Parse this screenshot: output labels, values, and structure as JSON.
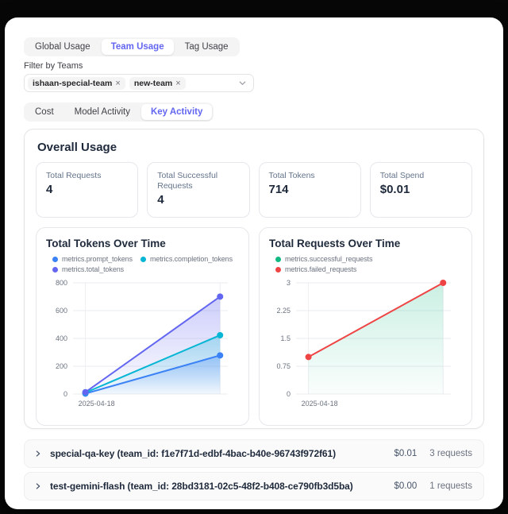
{
  "page": {
    "background": "#070707",
    "window_background": "#ffffff",
    "accent": "#6366f1"
  },
  "primary_tabs": {
    "items": [
      {
        "label": "Global Usage",
        "active": false
      },
      {
        "label": "Team Usage",
        "active": true
      },
      {
        "label": "Tag Usage",
        "active": false
      }
    ]
  },
  "team_filter": {
    "label": "Filter by Teams",
    "selected": [
      {
        "label": "ishaan-special-team"
      },
      {
        "label": "new-team"
      }
    ],
    "remove_icon": "×"
  },
  "secondary_tabs": {
    "items": [
      {
        "label": "Cost",
        "active": false
      },
      {
        "label": "Model Activity",
        "active": false
      },
      {
        "label": "Key Activity",
        "active": true
      }
    ]
  },
  "usage_panel": {
    "title": "Overall Usage",
    "stats": [
      {
        "label": "Total Requests",
        "value": "4"
      },
      {
        "label": "Total Successful Requests",
        "value": "4"
      },
      {
        "label": "Total Tokens",
        "value": "714"
      },
      {
        "label": "Total Spend",
        "value": "$0.01"
      }
    ]
  },
  "chart_data": [
    {
      "type": "area",
      "title": "Total Tokens Over Time",
      "x": [
        "2025-04-18",
        ""
      ],
      "ylim": [
        0,
        800
      ],
      "y_ticks": [
        0,
        200,
        400,
        600,
        800
      ],
      "grid": true,
      "legend_position": "top",
      "series": [
        {
          "name": "metrics.prompt_tokens",
          "color": "#3b82f6",
          "values": [
            3,
            278
          ],
          "line": true,
          "area": true,
          "dots": true,
          "fill_opacity": 0.32
        },
        {
          "name": "metrics.completion_tokens",
          "color": "#06b6d4",
          "values": [
            10,
            423
          ],
          "line": true,
          "area": true,
          "dots": true,
          "fill_opacity": 0.28
        },
        {
          "name": "metrics.total_tokens",
          "color": "#6366f1",
          "values": [
            13,
            701
          ],
          "line": true,
          "area": true,
          "dots": true,
          "fill_opacity": 0.32
        }
      ]
    },
    {
      "type": "area",
      "title": "Total Requests Over Time",
      "x": [
        "2025-04-18",
        ""
      ],
      "ylim": [
        0,
        3
      ],
      "y_ticks": [
        0,
        0.75,
        1.5,
        2.25,
        3
      ],
      "grid": true,
      "legend_position": "top",
      "series": [
        {
          "name": "metrics.successful_requests",
          "color": "#10b981",
          "values": [
            1,
            3
          ],
          "line": false,
          "area": true,
          "dots": false,
          "fill_opacity": 0.22
        },
        {
          "name": "metrics.failed_requests",
          "color": "#ef4444",
          "values": [
            1,
            3
          ],
          "line": true,
          "area": false,
          "dots": true
        }
      ]
    }
  ],
  "key_list": {
    "rows": [
      {
        "name": "special-qa-key (team_id: f1e7f71d-edbf-4bac-b40e-96743f972f61)",
        "spend": "$0.01",
        "requests": "3 requests"
      },
      {
        "name": "test-gemini-flash (team_id: 28bd3181-02c5-48f2-b408-ce790fb3d5ba)",
        "spend": "$0.00",
        "requests": "1 requests"
      }
    ]
  }
}
